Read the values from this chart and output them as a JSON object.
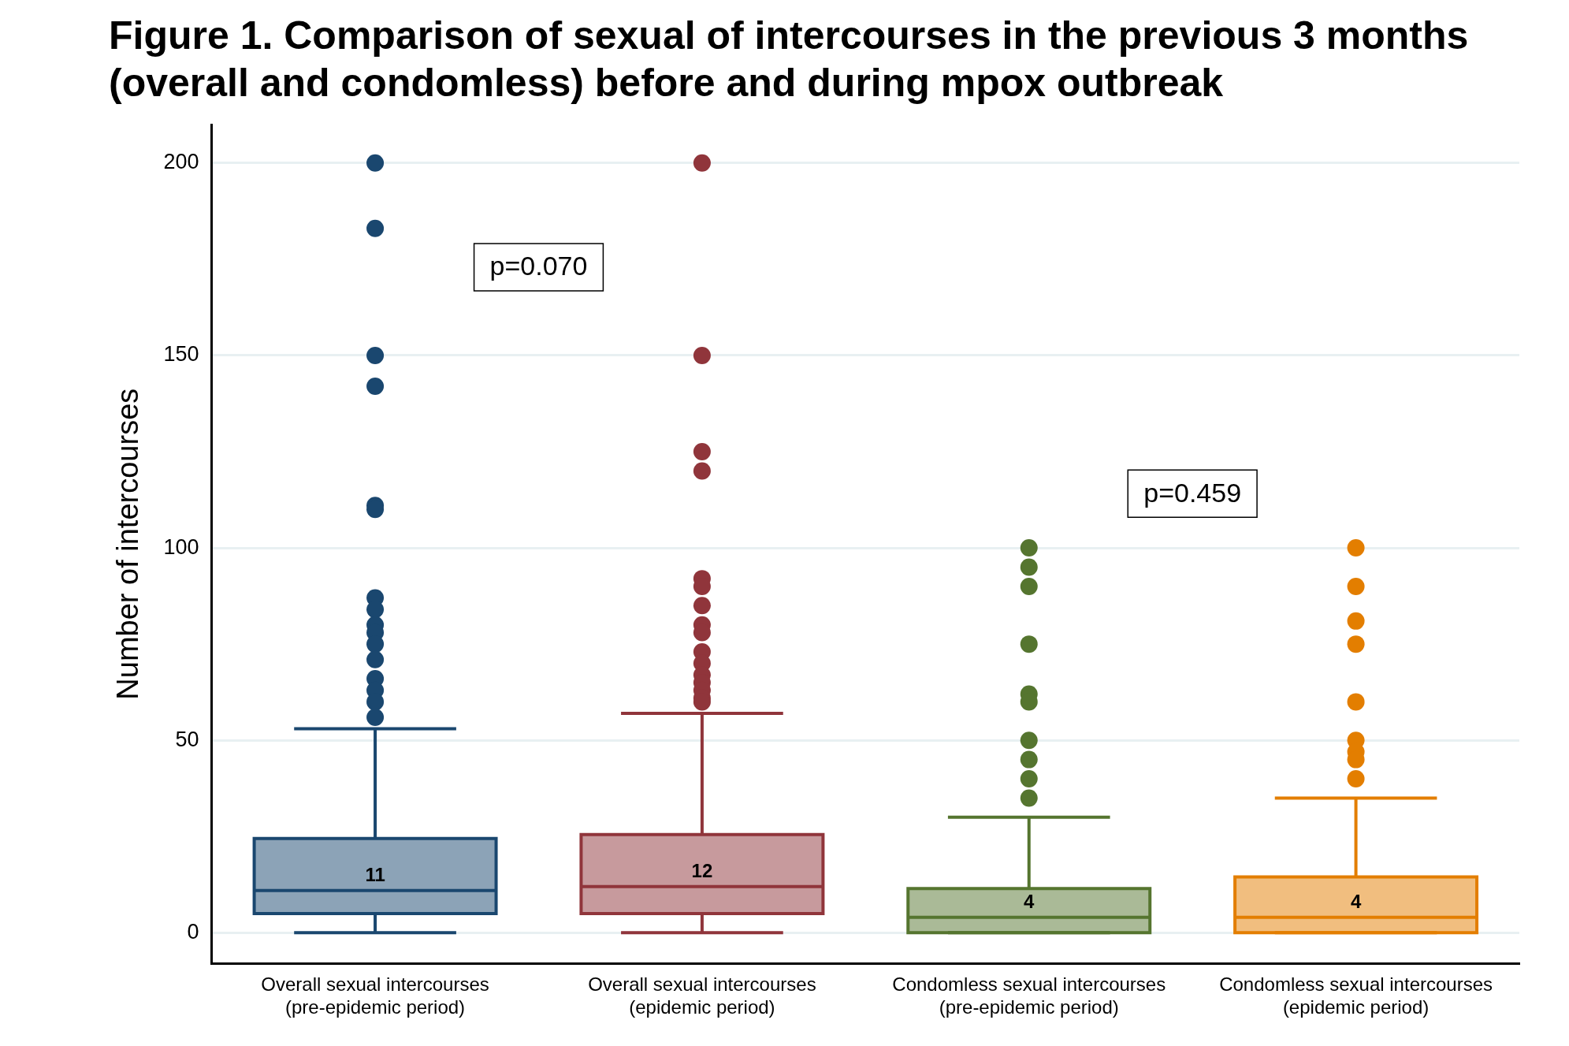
{
  "chart_data": {
    "type": "box",
    "title": "Figure 1. Comparison of sexual of intercourses in the previous 3 months (overall and condomless) before and during mpox outbreak",
    "ylabel": "Number of intercourses",
    "categories": [
      "Overall sexual intercourses\n(pre-epidemic period)",
      "Overall sexual intercourses\n(epidemic period)",
      "Condomless sexual intercourses\n(pre-epidemic period)",
      "Condomless sexual intercourses\n(epidemic period)"
    ],
    "colors": [
      "#1a476f",
      "#90353b",
      "#55752f",
      "#e37e00"
    ],
    "boxes": [
      {
        "low": 0,
        "q1": 5,
        "median": 11,
        "q3": 24.5,
        "high": 53,
        "outliers": [
          200,
          183,
          150,
          142,
          111,
          110,
          87,
          84,
          80,
          78,
          75,
          71,
          66,
          63,
          60,
          56
        ]
      },
      {
        "low": 0,
        "q1": 5,
        "median": 12,
        "q3": 25.5,
        "high": 57,
        "outliers": [
          200,
          150,
          125,
          120,
          92,
          90,
          85,
          80,
          78,
          73,
          70,
          67,
          65,
          63,
          61,
          60
        ]
      },
      {
        "low": 0,
        "q1": 0,
        "median": 4,
        "q3": 11.5,
        "high": 30,
        "outliers": [
          100,
          95,
          90,
          75,
          62,
          60,
          50,
          45,
          40,
          35
        ]
      },
      {
        "low": 0,
        "q1": 0,
        "median": 4,
        "q3": 14.5,
        "high": 35,
        "outliers": [
          100,
          90,
          81,
          75,
          60,
          50,
          47,
          45,
          40
        ]
      }
    ],
    "value_labels": [
      "11",
      "12",
      "4",
      "4"
    ],
    "marker": "circle",
    "ylim": [
      -8,
      210
    ],
    "yticks": [
      0,
      50,
      100,
      150,
      200
    ],
    "grid": "y",
    "legend": false,
    "annotations": [
      "p=0.070",
      "p=0.459"
    ]
  }
}
